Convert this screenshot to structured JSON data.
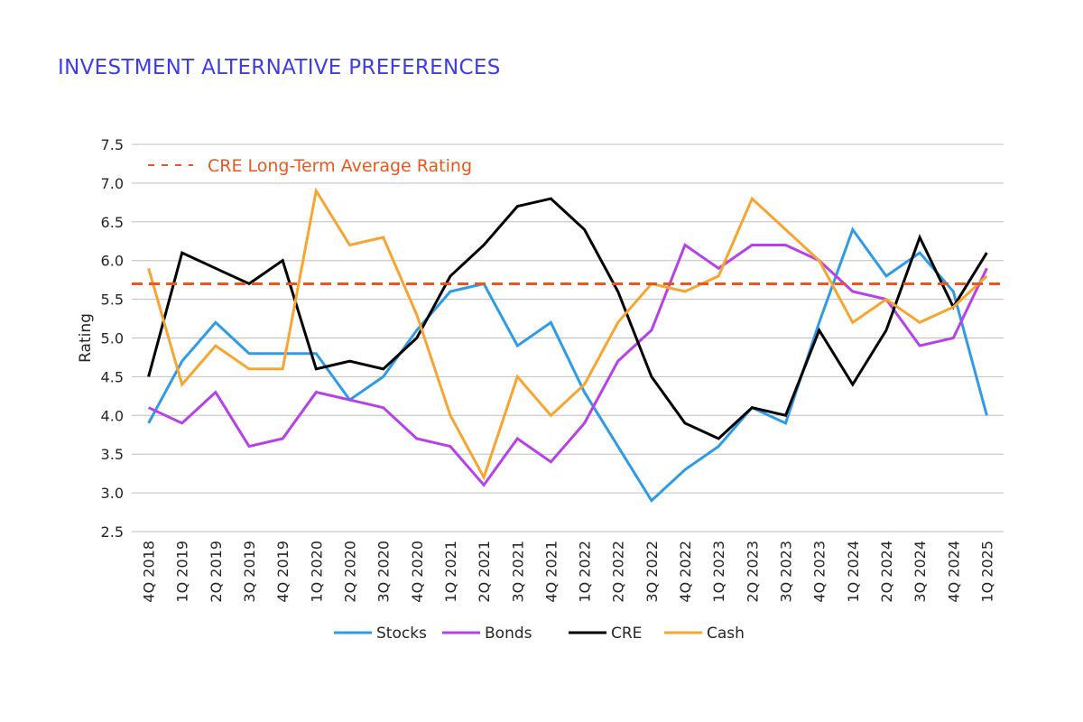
{
  "page_title": "INVESTMENT ALTERNATIVE PREFERENCES",
  "colors": {
    "title": "#3d3de6",
    "stocks": "#2e9be6",
    "bonds": "#b840e8",
    "cre": "#000000",
    "cash": "#f7a530",
    "reference": "#e8581c",
    "grid": "#bfbfbf",
    "text": "#262626"
  },
  "chart_data": {
    "type": "line",
    "title": "INVESTMENT ALTERNATIVE PREFERENCES",
    "xlabel": "",
    "ylabel": "Rating",
    "ylim": [
      2.5,
      7.5
    ],
    "yticks": [
      "7.5",
      "7.0",
      "6.5",
      "6.0",
      "5.5",
      "5.0",
      "4.5",
      "4.0",
      "3.5",
      "3.0",
      "2.5"
    ],
    "grid": true,
    "legend_position": "bottom",
    "categories": [
      "4Q 2018",
      "1Q 2019",
      "2Q 2019",
      "3Q 2019",
      "4Q 2019",
      "1Q 2020",
      "2Q 2020",
      "3Q 2020",
      "4Q 2020",
      "1Q 2021",
      "2Q 2021",
      "3Q 2021",
      "4Q 2021",
      "1Q 2022",
      "2Q 2022",
      "3Q 2022",
      "4Q 2022",
      "1Q 2023",
      "2Q 2023",
      "3Q 2023",
      "4Q 2023",
      "1Q 2024",
      "2Q 2024",
      "3Q 2024",
      "4Q 2024",
      "1Q 2025"
    ],
    "series": [
      {
        "name": "Stocks",
        "color": "#2e9be6",
        "values": [
          3.9,
          4.7,
          5.2,
          4.8,
          4.8,
          4.8,
          4.2,
          4.5,
          5.1,
          5.6,
          5.7,
          4.9,
          5.2,
          4.3,
          3.6,
          2.9,
          3.3,
          3.6,
          4.1,
          3.9,
          5.2,
          6.4,
          5.8,
          6.1,
          5.6,
          4.0
        ]
      },
      {
        "name": "Bonds",
        "color": "#b840e8",
        "values": [
          4.1,
          3.9,
          4.3,
          3.6,
          3.7,
          4.3,
          4.2,
          4.1,
          3.7,
          3.6,
          3.1,
          3.7,
          3.4,
          3.9,
          4.7,
          5.1,
          6.2,
          5.9,
          6.2,
          6.2,
          6.0,
          5.6,
          5.5,
          4.9,
          5.0,
          5.9
        ]
      },
      {
        "name": "CRE",
        "color": "#000000",
        "values": [
          4.5,
          6.1,
          5.9,
          5.7,
          6.0,
          4.6,
          4.7,
          4.6,
          5.0,
          5.8,
          6.2,
          6.7,
          6.8,
          6.4,
          5.6,
          4.5,
          3.9,
          3.7,
          4.1,
          4.0,
          5.1,
          4.4,
          5.1,
          6.3,
          5.4,
          6.1
        ]
      },
      {
        "name": "Cash",
        "color": "#f7a530",
        "values": [
          5.9,
          4.4,
          4.9,
          4.6,
          4.6,
          6.9,
          6.2,
          6.3,
          5.3,
          4.0,
          3.2,
          4.5,
          4.0,
          4.4,
          5.2,
          5.7,
          5.6,
          5.8,
          6.8,
          6.4,
          6.0,
          5.2,
          5.5,
          5.2,
          5.4,
          5.8
        ]
      }
    ],
    "reference_line": {
      "label": "CRE Long-Term Average Rating",
      "value": 5.7
    }
  }
}
